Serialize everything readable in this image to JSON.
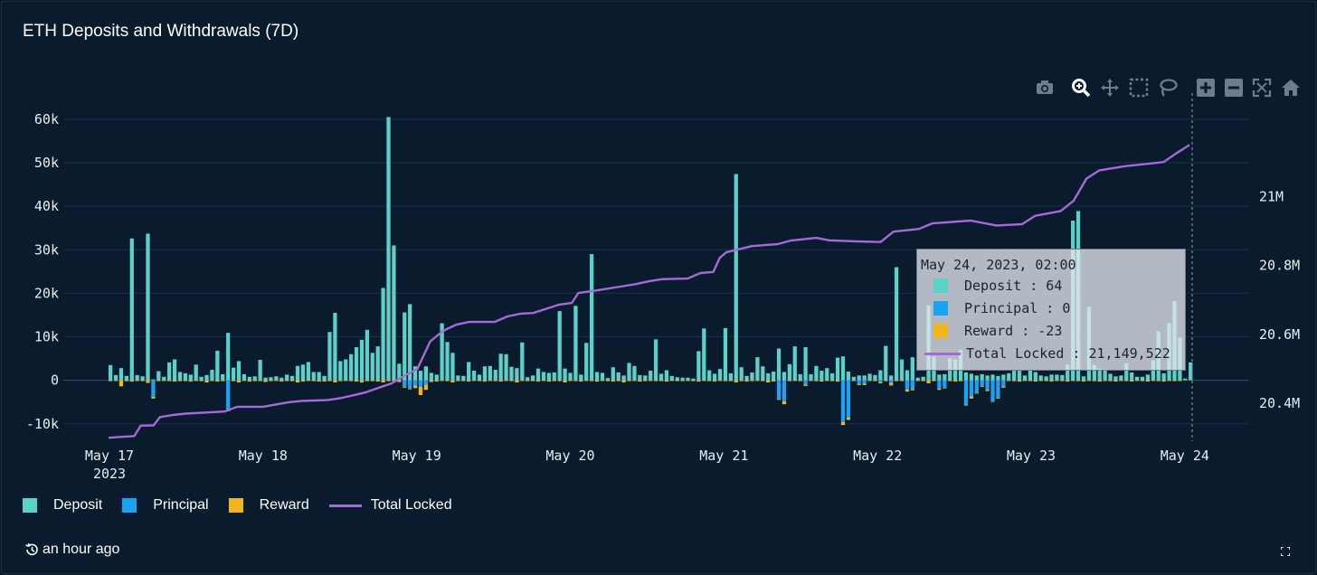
{
  "title": "ETH Deposits and Withdrawals (7D)",
  "colors": {
    "deposit": "#5ad1c9",
    "principal": "#1aa3f5",
    "reward": "#f2b61d",
    "total": "#a36bd6",
    "grid": "#1b3047",
    "zero": "#3c526a"
  },
  "legend": [
    {
      "label": "Deposit",
      "color": "#5ad1c9",
      "kind": "box"
    },
    {
      "label": "Principal",
      "color": "#1aa3f5",
      "kind": "box"
    },
    {
      "label": "Reward",
      "color": "#f2b61d",
      "kind": "box"
    },
    {
      "label": "Total Locked",
      "color": "#a36bd6",
      "kind": "line"
    }
  ],
  "updated": "an hour ago",
  "tooltip": {
    "title": "May 24, 2023, 02:00",
    "deposit": "Deposit : 64",
    "principal": "Principal : 0",
    "reward": "Reward : -23",
    "total": "Total Locked : 21,149,522"
  },
  "modebar": [
    "camera-icon",
    "zoom-icon",
    "pan-icon",
    "box-select-icon",
    "lasso-icon",
    "zoom-in-icon",
    "zoom-out-icon",
    "autoscale-icon",
    "reset-axes-icon"
  ],
  "chart_data": {
    "type": "bar",
    "title": "ETH Deposits and Withdrawals (7D)",
    "x_start_hour": 0,
    "x_end_hour": 170,
    "x_ticks": [
      {
        "label": "May 17",
        "sub": "2023",
        "hour": 0
      },
      {
        "label": "May 18",
        "hour": 24
      },
      {
        "label": "May 19",
        "hour": 48
      },
      {
        "label": "May 20",
        "hour": 72
      },
      {
        "label": "May 21",
        "hour": 96
      },
      {
        "label": "May 22",
        "hour": 120
      },
      {
        "label": "May 23",
        "hour": 144
      },
      {
        "label": "May 24",
        "hour": 168
      }
    ],
    "y_left": {
      "ticks": [
        -10000,
        0,
        10000,
        20000,
        30000,
        40000,
        50000,
        60000
      ],
      "tick_labels": [
        "-10k",
        "0",
        "10k",
        "20k",
        "30k",
        "40k",
        "50k",
        "60k"
      ],
      "range": [
        -14000,
        66000
      ]
    },
    "y_right": {
      "ticks": [
        20400000,
        20600000,
        20800000,
        21000000
      ],
      "tick_labels": [
        "20.4M",
        "20.6M",
        "20.8M",
        "21M"
      ],
      "range": [
        20290000,
        21300000
      ]
    },
    "series": [
      {
        "name": "Deposit",
        "axis": "left",
        "values": [
          3500,
          1200,
          2800,
          1000,
          32600,
          1200,
          900,
          33700,
          200,
          2100,
          800,
          4100,
          4800,
          1900,
          1600,
          1300,
          3600,
          800,
          1200,
          2400,
          6800,
          1400,
          10900,
          2900,
          4400,
          1400,
          800,
          900,
          4700,
          600,
          700,
          900,
          600,
          1300,
          1000,
          3300,
          3600,
          4200,
          1900,
          1900,
          1000,
          11100,
          15500,
          4400,
          4800,
          6000,
          7600,
          9300,
          11600,
          6300,
          7800,
          21200,
          60500,
          31000,
          3800,
          15600,
          17500,
          3200,
          2200,
          3200,
          1700,
          1300,
          13100,
          8800,
          6300,
          1100,
          1000,
          4200,
          2200,
          1300,
          3200,
          3300,
          2400,
          6100,
          6000,
          3100,
          2800,
          8700,
          700,
          1100,
          2700,
          1900,
          1700,
          1800,
          15900,
          2700,
          1700,
          17100,
          1300,
          8600,
          29000,
          1900,
          1700,
          500,
          3000,
          1800,
          1100,
          4000,
          3300,
          1200,
          1100,
          2200,
          9400,
          1500,
          2300,
          1000,
          700,
          600,
          600,
          400,
          6700,
          11900,
          2300,
          1500,
          2600,
          12000,
          1600,
          47400,
          3000,
          1000,
          1800,
          5300,
          3200,
          1600,
          2000,
          7300,
          1900,
          3700,
          7800,
          1400,
          7600,
          1400,
          3300,
          2200,
          2800,
          1600,
          5200,
          5500,
          2000,
          800,
          1100,
          1100,
          1500,
          1200,
          2300,
          7900,
          1100,
          26000,
          4800,
          2300,
          5300,
          600,
          800,
          17200,
          5500,
          1300,
          1400,
          5100,
          4800,
          7000,
          1800,
          1500,
          1100,
          1400,
          1100,
          1300,
          1000,
          1300,
          1600,
          2400,
          2200,
          1100,
          2400,
          1900,
          1100,
          900,
          1300,
          1300,
          1200,
          3600,
          36700,
          38900,
          900,
          16900,
          3500,
          2700,
          2500,
          1500,
          900,
          1100,
          3900,
          1800,
          800,
          800,
          1300,
          4600,
          11200,
          1600,
          13200,
          18200,
          9800,
          400,
          4100
        ]
      },
      {
        "name": "Principal",
        "axis": "left",
        "values": [
          0,
          0,
          0,
          0,
          0,
          0,
          0,
          0,
          -3800,
          0,
          0,
          0,
          0,
          0,
          0,
          0,
          0,
          0,
          0,
          0,
          0,
          0,
          -6900,
          0,
          0,
          0,
          0,
          0,
          0,
          0,
          0,
          0,
          0,
          0,
          0,
          0,
          0,
          0,
          0,
          0,
          0,
          0,
          0,
          0,
          0,
          0,
          0,
          0,
          0,
          0,
          0,
          0,
          0,
          0,
          0,
          -1500,
          -1900,
          -1200,
          -1500,
          -1000,
          0,
          0,
          0,
          0,
          0,
          0,
          0,
          0,
          0,
          0,
          0,
          0,
          0,
          0,
          0,
          0,
          0,
          0,
          0,
          0,
          0,
          0,
          0,
          0,
          0,
          0,
          0,
          0,
          0,
          0,
          0,
          0,
          0,
          0,
          0,
          0,
          0,
          0,
          0,
          0,
          0,
          0,
          0,
          0,
          0,
          0,
          0,
          0,
          0,
          0,
          0,
          0,
          0,
          0,
          0,
          0,
          0,
          0,
          0,
          0,
          0,
          0,
          0,
          0,
          0,
          -4300,
          -4800,
          0,
          0,
          0,
          -1000,
          0,
          0,
          0,
          0,
          0,
          0,
          -9600,
          -8600,
          0,
          -900,
          -800,
          0,
          0,
          -400,
          0,
          -600,
          0,
          0,
          -2100,
          -2000,
          0,
          0,
          0,
          0,
          -1900,
          -1700,
          0,
          0,
          0,
          -5600,
          -3700,
          -2900,
          -1300,
          -2200,
          -4800,
          -4000,
          -1400,
          0,
          0,
          0,
          0,
          0,
          0,
          0,
          0,
          0,
          0,
          0,
          0,
          0,
          0,
          0,
          0,
          0,
          0,
          0,
          0,
          0,
          0,
          0,
          0,
          0,
          0,
          0,
          0,
          0,
          0,
          0,
          0,
          0,
          0,
          0,
          0,
          0,
          0,
          0,
          0,
          0
        ]
      },
      {
        "name": "Reward",
        "axis": "left",
        "values": [
          -200,
          -100,
          -1400,
          -200,
          -300,
          -100,
          -200,
          -600,
          -400,
          -200,
          -100,
          -200,
          -300,
          -200,
          -200,
          -300,
          -100,
          -200,
          -500,
          -100,
          -300,
          -200,
          -200,
          -200,
          -500,
          -100,
          -300,
          -200,
          -200,
          -400,
          -200,
          -100,
          -300,
          -200,
          -200,
          -500,
          -300,
          -100,
          -200,
          -300,
          -300,
          -200,
          -500,
          -200,
          -100,
          -200,
          -300,
          -500,
          -200,
          -200,
          -300,
          -500,
          -200,
          -200,
          -400,
          -200,
          -100,
          -600,
          -1900,
          -1200,
          -400,
          -300,
          -100,
          -200,
          -500,
          -200,
          -200,
          -300,
          -100,
          -200,
          -300,
          -100,
          -200,
          -300,
          -100,
          -200,
          -500,
          -100,
          -200,
          -200,
          -300,
          -100,
          -300,
          -200,
          -200,
          -500,
          -100,
          -200,
          -300,
          -100,
          -200,
          -300,
          -100,
          -200,
          -300,
          -200,
          -500,
          -200,
          -100,
          -300,
          -200,
          -100,
          -200,
          -200,
          -300,
          -100,
          -200,
          -200,
          -100,
          -200,
          -300,
          -100,
          -200,
          -300,
          -100,
          -200,
          -200,
          -500,
          -200,
          -300,
          -200,
          -100,
          -200,
          -500,
          -300,
          -200,
          -700,
          -200,
          -100,
          -200,
          -300,
          -100,
          -200,
          -300,
          -100,
          -200,
          -300,
          -700,
          -500,
          -100,
          -200,
          -300,
          -100,
          -200,
          -300,
          -200,
          -600,
          -200,
          -100,
          -500,
          -300,
          -100,
          -200,
          -700,
          -200,
          -300,
          -100,
          -200,
          -300,
          -200,
          -200,
          -500,
          -100,
          -200,
          -300,
          -100,
          -200,
          -300,
          -100,
          -200,
          -300,
          -100,
          -200,
          -300,
          -100,
          -200,
          -300,
          -100,
          -200,
          -300,
          -100,
          -200,
          -300,
          -100,
          -200,
          -300,
          -100,
          -200,
          -300,
          -100,
          -200,
          -300,
          -100,
          -200,
          -300,
          -100,
          -200,
          -300,
          -100,
          -200,
          -23
        ]
      },
      {
        "name": "Total Locked",
        "axis": "right",
        "type": "line",
        "points": [
          [
            0,
            20300000
          ],
          [
            4,
            20305000
          ],
          [
            5,
            20335000
          ],
          [
            7,
            20336000
          ],
          [
            8,
            20360000
          ],
          [
            10,
            20366000
          ],
          [
            12,
            20370000
          ],
          [
            18,
            20376000
          ],
          [
            20,
            20390000
          ],
          [
            24,
            20390000
          ],
          [
            28,
            20403000
          ],
          [
            30,
            20407000
          ],
          [
            34,
            20409000
          ],
          [
            36,
            20415000
          ],
          [
            38,
            20423000
          ],
          [
            40,
            20432000
          ],
          [
            42,
            20445000
          ],
          [
            44,
            20458000
          ],
          [
            46,
            20480000
          ],
          [
            48,
            20500000
          ],
          [
            50,
            20580000
          ],
          [
            52,
            20610000
          ],
          [
            54,
            20628000
          ],
          [
            56,
            20636000
          ],
          [
            60,
            20636000
          ],
          [
            62,
            20652000
          ],
          [
            64,
            20660000
          ],
          [
            66,
            20662000
          ],
          [
            68,
            20674000
          ],
          [
            70,
            20686000
          ],
          [
            72,
            20691000
          ],
          [
            73,
            20720000
          ],
          [
            76,
            20728000
          ],
          [
            80,
            20740000
          ],
          [
            82,
            20746000
          ],
          [
            84,
            20754000
          ],
          [
            86,
            20760000
          ],
          [
            90,
            20762000
          ],
          [
            92,
            20778000
          ],
          [
            94,
            20781000
          ],
          [
            95,
            20822000
          ],
          [
            96,
            20838000
          ],
          [
            100,
            20856000
          ],
          [
            104,
            20862000
          ],
          [
            106,
            20872000
          ],
          [
            110,
            20880000
          ],
          [
            112,
            20873000
          ],
          [
            116,
            20870000
          ],
          [
            120,
            20868000
          ],
          [
            122,
            20898000
          ],
          [
            126,
            20906000
          ],
          [
            128,
            20922000
          ],
          [
            134,
            20930000
          ],
          [
            138,
            20916000
          ],
          [
            142,
            20920000
          ],
          [
            144,
            20944000
          ],
          [
            148,
            20958000
          ],
          [
            150,
            20988000
          ],
          [
            152,
            21052000
          ],
          [
            154,
            21076000
          ],
          [
            158,
            21088000
          ],
          [
            162,
            21096000
          ],
          [
            164,
            21100000
          ],
          [
            166,
            21126000
          ],
          [
            168,
            21149522
          ]
        ]
      }
    ],
    "hover_hour": 170
  }
}
